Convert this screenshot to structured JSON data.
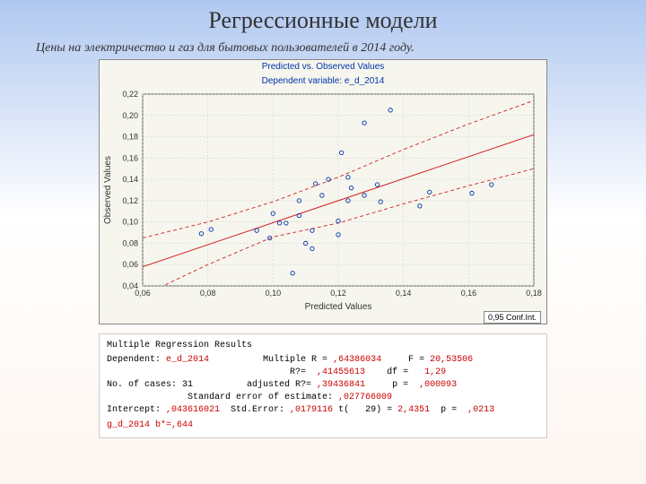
{
  "title": "Регрессионные модели",
  "subtitle": "Цены на электричество и газ для бытовых пользователей в 2014 году.",
  "chart": {
    "type": "scatter",
    "title1": "Predicted vs. Observed Values",
    "title2": "Dependent variable: e_d_2014",
    "xlabel": "Predicted Values",
    "ylabel": "Observed Values",
    "xlim": [
      0.06,
      0.18
    ],
    "xtick_step": 0.02,
    "ylim": [
      0.04,
      0.22
    ],
    "ytick_step": 0.02,
    "background_color": "#f6f6ee",
    "grid_color": "#cccccc",
    "axis_color": "#333333",
    "label_fontsize": 10,
    "tick_fontsize": 9,
    "point_color": "#0033aa",
    "point_radius": 2.2,
    "fit_line_color": "#d02020",
    "conf_line_color": "#d02020",
    "conf_dash": "4 3",
    "fit_line": {
      "x1": 0.06,
      "y1": 0.058,
      "x2": 0.18,
      "y2": 0.182
    },
    "conf_upper": [
      [
        0.06,
        0.085
      ],
      [
        0.08,
        0.1
      ],
      [
        0.1,
        0.119
      ],
      [
        0.12,
        0.142
      ],
      [
        0.14,
        0.168
      ],
      [
        0.16,
        0.192
      ],
      [
        0.18,
        0.214
      ]
    ],
    "conf_lower": [
      [
        0.06,
        0.031
      ],
      [
        0.08,
        0.06
      ],
      [
        0.1,
        0.086
      ],
      [
        0.12,
        0.099
      ],
      [
        0.14,
        0.117
      ],
      [
        0.16,
        0.134
      ],
      [
        0.18,
        0.15
      ]
    ],
    "points": [
      [
        0.078,
        0.089
      ],
      [
        0.081,
        0.093
      ],
      [
        0.095,
        0.092
      ],
      [
        0.099,
        0.085
      ],
      [
        0.1,
        0.108
      ],
      [
        0.102,
        0.099
      ],
      [
        0.106,
        0.052
      ],
      [
        0.104,
        0.099
      ],
      [
        0.108,
        0.12
      ],
      [
        0.108,
        0.106
      ],
      [
        0.11,
        0.08
      ],
      [
        0.112,
        0.075
      ],
      [
        0.112,
        0.092
      ],
      [
        0.113,
        0.136
      ],
      [
        0.115,
        0.125
      ],
      [
        0.117,
        0.14
      ],
      [
        0.121,
        0.165
      ],
      [
        0.12,
        0.088
      ],
      [
        0.12,
        0.101
      ],
      [
        0.123,
        0.142
      ],
      [
        0.124,
        0.132
      ],
      [
        0.123,
        0.12
      ],
      [
        0.128,
        0.125
      ],
      [
        0.128,
        0.193
      ],
      [
        0.132,
        0.135
      ],
      [
        0.133,
        0.119
      ],
      [
        0.136,
        0.205
      ],
      [
        0.145,
        0.115
      ],
      [
        0.148,
        0.128
      ],
      [
        0.161,
        0.127
      ],
      [
        0.167,
        0.135
      ]
    ],
    "legend": "0,95 Conf.Int."
  },
  "stats": {
    "header": "Multiple Regression Results",
    "dep_label": "Dependent:",
    "dep_value": "e_d_2014",
    "multR_label": "Multiple R =",
    "multR": ",64386034",
    "F_label": "F =",
    "F": "20,53506",
    "R2_label": "R?=",
    "R2": ",41455613",
    "df_label": "df =",
    "df": "1,29",
    "ncases_label": "No. of cases:",
    "ncases": "31",
    "adjR2_label": "adjusted R?=",
    "adjR2": ",39436841",
    "p_label": "p =",
    "p": ",000093",
    "see_label": "Standard error of estimate:",
    "see": ",027766009",
    "int_label": "Intercept:",
    "int": ",043616021",
    "stderr_label": "Std.Error:",
    "stderr": ",0179116",
    "t_label": "t(   29) =",
    "t": "2,4351",
    "p2_label": "p =",
    "p2": ",0213",
    "bstar": "g_d_2014 b*=,644"
  }
}
